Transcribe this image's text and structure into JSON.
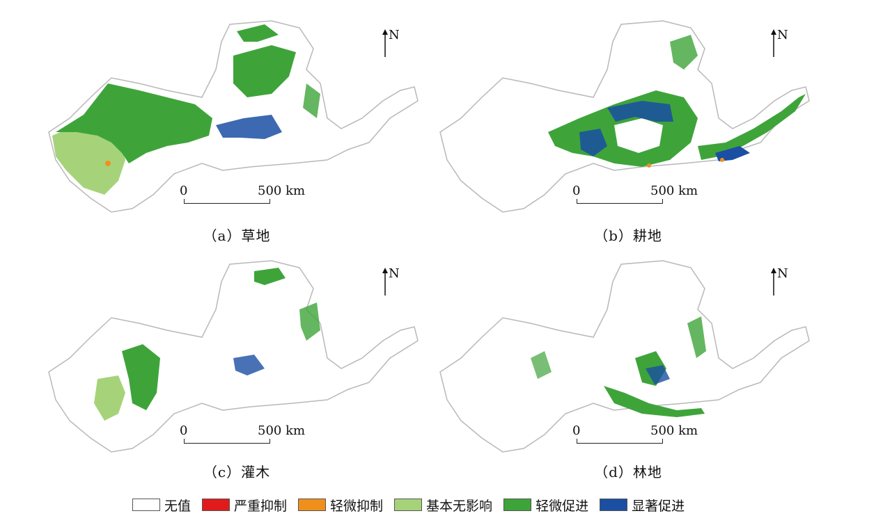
{
  "panels": [
    {
      "id": "a",
      "caption": "（a）草地",
      "north": "N",
      "scale_start": "0",
      "scale_end": "500 km"
    },
    {
      "id": "b",
      "caption": "（b）耕地",
      "north": "N",
      "scale_start": "0",
      "scale_end": "500 km"
    },
    {
      "id": "c",
      "caption": "（c）灌木",
      "north": "N",
      "scale_start": "0",
      "scale_end": "500 km"
    },
    {
      "id": "d",
      "caption": "（d）林地",
      "north": "N",
      "scale_start": "0",
      "scale_end": "500 km"
    }
  ],
  "legend": [
    {
      "label": "无值",
      "color": "#ffffff"
    },
    {
      "label": "严重抑制",
      "color": "#e11b1b"
    },
    {
      "label": "轻微抑制",
      "color": "#f0901c"
    },
    {
      "label": "基本无影响",
      "color": "#a6d37a"
    },
    {
      "label": "轻微促进",
      "color": "#3ea43a"
    },
    {
      "label": "显著促进",
      "color": "#1a4fa3"
    }
  ],
  "colors": {
    "outline": "#b8b8b8",
    "light_green": "#a6d37a",
    "green": "#3ea43a",
    "blue": "#1a4fa3",
    "orange": "#f0901c"
  }
}
